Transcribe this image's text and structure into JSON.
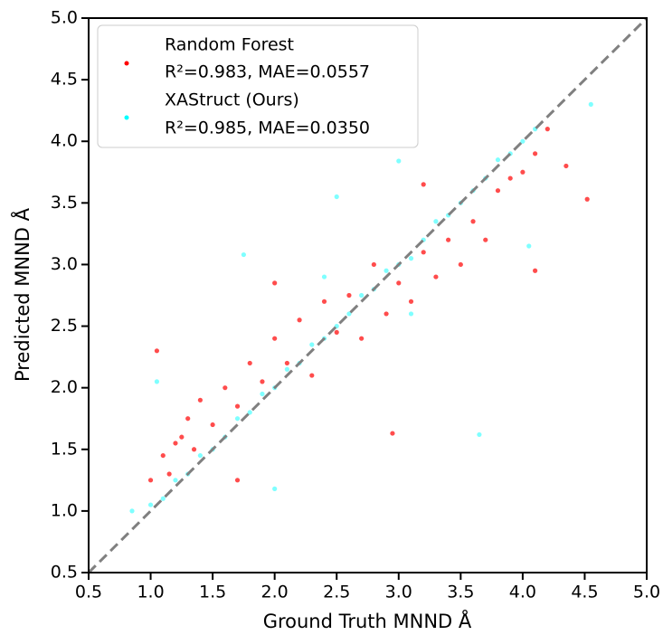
{
  "chart_data": {
    "type": "scatter",
    "xlabel": "Ground Truth MNND Å",
    "ylabel": "Predicted MNND Å",
    "xlim": [
      0.5,
      5.0
    ],
    "ylim": [
      0.5,
      5.0
    ],
    "xticks": [
      0.5,
      {
        "value": 1,
        "label": "1.0"
      },
      1.5,
      {
        "value": 2,
        "label": "2.0"
      },
      2.5,
      {
        "value": 3,
        "label": "3.0"
      },
      3.5,
      {
        "value": 4,
        "label": "4.0"
      },
      4.5,
      {
        "value": 5,
        "label": "5.0"
      }
    ],
    "yticks": [
      0.5,
      {
        "value": 1,
        "label": "1.0"
      },
      1.5,
      {
        "value": 2,
        "label": "2.0"
      },
      2.5,
      {
        "value": 3,
        "label": "3.0"
      },
      3.5,
      {
        "value": 4,
        "label": "4.0"
      },
      4.5,
      {
        "value": 5,
        "label": "5.0"
      }
    ],
    "identity_line": true,
    "identity_line_color": "#808080",
    "legend": "upper left",
    "series": [
      {
        "name": "Random Forest",
        "stats": "R²=0.983, MAE=0.0557",
        "color": "#ff0000",
        "x": [
          1.0,
          1.05,
          1.1,
          1.15,
          1.2,
          1.25,
          1.3,
          1.35,
          1.4,
          1.5,
          1.6,
          1.7,
          1.8,
          1.9,
          2.0,
          2.1,
          2.2,
          2.3,
          2.4,
          2.5,
          2.6,
          2.7,
          2.8,
          2.9,
          3.0,
          3.1,
          3.2,
          3.3,
          3.4,
          3.5,
          3.6,
          3.7,
          3.8,
          3.9,
          4.0,
          4.1,
          4.2,
          4.35,
          4.52,
          2.95,
          4.1,
          2.0,
          1.7,
          3.2
        ],
        "values": [
          1.25,
          2.3,
          1.45,
          1.3,
          1.55,
          1.6,
          1.75,
          1.5,
          1.9,
          1.7,
          2.0,
          1.85,
          2.2,
          2.05,
          2.4,
          2.2,
          2.55,
          2.1,
          2.7,
          2.45,
          2.75,
          2.4,
          3.0,
          2.6,
          2.85,
          2.7,
          3.1,
          2.9,
          3.2,
          3.0,
          3.35,
          3.2,
          3.6,
          3.7,
          3.75,
          3.9,
          4.1,
          3.8,
          3.53,
          1.63,
          2.95,
          2.85,
          1.25,
          3.65
        ]
      },
      {
        "name": "XAStruct (Ours)",
        "stats": "R²=0.985, MAE=0.0350",
        "color": "#00ffff",
        "x": [
          0.85,
          1.0,
          1.1,
          1.2,
          1.3,
          1.4,
          1.5,
          1.6,
          1.7,
          1.8,
          1.9,
          2.0,
          2.1,
          2.2,
          2.3,
          2.4,
          2.5,
          2.6,
          2.7,
          2.8,
          2.9,
          3.0,
          3.1,
          3.2,
          3.3,
          3.4,
          3.5,
          3.6,
          3.7,
          3.8,
          3.9,
          4.0,
          4.1,
          4.55,
          2.0,
          3.65,
          1.05,
          2.5,
          3.0,
          1.75,
          4.05,
          2.4,
          3.1
        ],
        "values": [
          1.0,
          1.05,
          1.1,
          1.25,
          1.3,
          1.45,
          1.5,
          1.6,
          1.75,
          1.8,
          1.95,
          2.0,
          2.15,
          2.2,
          2.35,
          2.4,
          2.5,
          2.6,
          2.75,
          2.8,
          2.95,
          3.0,
          3.05,
          3.2,
          3.35,
          3.4,
          3.5,
          3.6,
          3.7,
          3.85,
          3.9,
          4.0,
          4.1,
          4.3,
          1.18,
          1.62,
          2.05,
          3.55,
          3.84,
          3.08,
          3.15,
          2.9,
          2.6
        ]
      }
    ]
  }
}
